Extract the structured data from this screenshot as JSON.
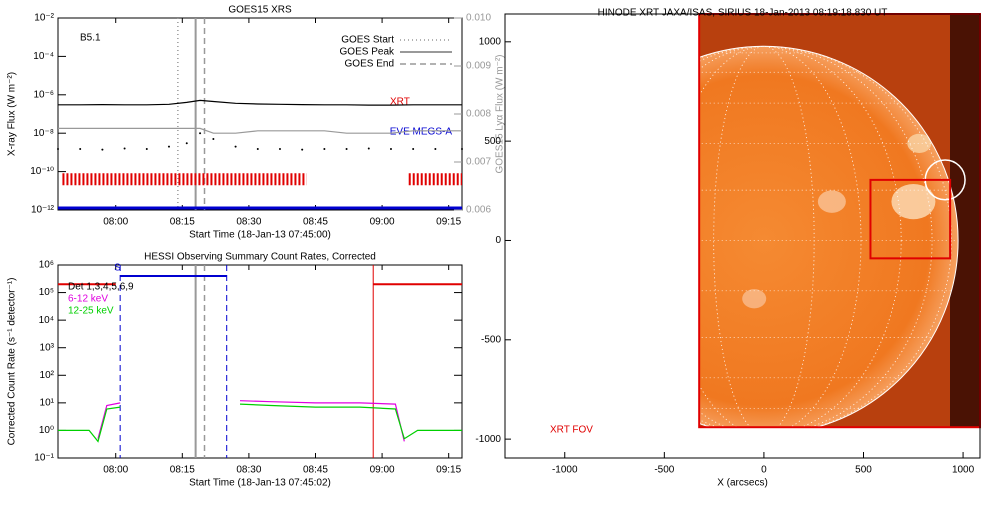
{
  "chart_data": [
    {
      "type": "line",
      "title": "GOES15 XRS",
      "xlabel": "Start Time (18-Jan-13 07:45:00)",
      "ylabel": "X-ray Flux (W m⁻²)",
      "y2label": "GOES15 Lyα Flux (W m⁻²)",
      "yscale": "log",
      "xlim": [
        "07:47",
        "09:18"
      ],
      "xticks": [
        "08:00",
        "08:15",
        "08:30",
        "08:45",
        "09:00",
        "09:15"
      ],
      "ylim": [
        1e-12,
        0.01
      ],
      "yticks": [
        {
          "value": 0.01,
          "label": "10⁻²"
        },
        {
          "value": 0.0001,
          "label": "10⁻⁴"
        },
        {
          "value": 1e-06,
          "label": "10⁻⁶"
        },
        {
          "value": 1e-08,
          "label": "10⁻⁸"
        },
        {
          "value": 1e-10,
          "label": "10⁻¹⁰"
        },
        {
          "value": 1e-12,
          "label": "10⁻¹²"
        }
      ],
      "y2lim": [
        0.006,
        0.01
      ],
      "y2ticks": [
        0.006,
        0.007,
        0.008,
        0.009,
        {
          "value": 0.01,
          "label": "0.010"
        }
      ],
      "annotation": "B5.1",
      "x": [
        "07:47",
        "07:52",
        "07:57",
        "08:02",
        "08:07",
        "08:12",
        "08:16",
        "08:19",
        "08:22",
        "08:27",
        "08:32",
        "08:37",
        "08:42",
        "08:47",
        "08:52",
        "08:57",
        "09:02",
        "09:07",
        "09:12",
        "09:18"
      ],
      "series": [
        {
          "color": "#000000",
          "values": [
            3e-07,
            3e-07,
            3.1e-07,
            3e-07,
            3e-07,
            3.2e-07,
            4e-07,
            5.1e-07,
            4.5e-07,
            3.6e-07,
            3.3e-07,
            3.2e-07,
            3.1e-07,
            3e-07,
            3e-07,
            2.9e-07,
            2.9e-07,
            3e-07,
            3e-07,
            3e-07
          ]
        },
        {
          "color": "#999999",
          "axis": "y2",
          "values": [
            0.0077,
            0.0077,
            0.0077,
            0.0077,
            0.0077,
            0.0077,
            0.0077,
            0.0077,
            0.0076,
            0.0076,
            0.00765,
            0.00765,
            0.00765,
            0.00765,
            0.0076,
            0.0076,
            0.0076,
            0.00765,
            0.00765,
            0.00765
          ]
        },
        {
          "color": "#000000",
          "style": "dots",
          "values": [
            1.5e-09,
            1.5e-09,
            1.4e-09,
            1.6e-09,
            1.5e-09,
            2e-09,
            3e-09,
            1e-08,
            5e-09,
            2e-09,
            1.5e-09,
            1.5e-09,
            1.4e-09,
            1.5e-09,
            1.5e-09,
            1.6e-09,
            1.5e-09,
            1.5e-09,
            1.5e-09,
            1.5e-09
          ]
        }
      ],
      "events": [
        {
          "name": "GOES Start",
          "x": "08:14",
          "style": "dotted"
        },
        {
          "name": "GOES Peak",
          "x": "08:18",
          "style": "solid"
        },
        {
          "name": "GOES End",
          "x": "08:20",
          "style": "dashed"
        }
      ],
      "coverage": [
        {
          "name": "XRT",
          "color": "#e00000",
          "level": 4e-11,
          "x": [
            [
              "07:48",
              "08:43"
            ],
            [
              "09:06",
              "09:18"
            ]
          ]
        },
        {
          "name": "EVE MEGS-A",
          "color": "#0000d0",
          "level": 1e-12,
          "x": [
            [
              "07:47",
              "09:18"
            ]
          ]
        }
      ]
    },
    {
      "type": "line",
      "title": "HESSI Observing Summary Count Rates, Corrected",
      "xlabel": "Start Time (18-Jan-13 07:45:02)",
      "ylabel": "Corrected Count Rate (s⁻¹ detector⁻¹)",
      "yscale": "log",
      "xlim": [
        "07:47",
        "09:18"
      ],
      "xticks": [
        "08:00",
        "08:15",
        "08:30",
        "08:45",
        "09:00",
        "09:15"
      ],
      "ylim": [
        0.1,
        1000000
      ],
      "yticks": [
        {
          "value": 0.1,
          "label": "10⁻¹"
        },
        {
          "value": 1,
          "label": "10⁰"
        },
        {
          "value": 10,
          "label": "10¹"
        },
        {
          "value": 100,
          "label": "10²"
        },
        {
          "value": 1000,
          "label": "10³"
        },
        {
          "value": 10000,
          "label": "10⁴"
        },
        {
          "value": 100000,
          "label": "10⁵"
        },
        {
          "value": 1000000,
          "label": "10⁶"
        }
      ],
      "legend_title": "Det 1,3,4,5,6,9",
      "x": [
        "07:47",
        "07:50",
        "07:54",
        "07:56",
        "07:58",
        "08:01",
        "08:14",
        "08:28",
        "08:35",
        "08:45",
        "08:55",
        "09:03",
        "09:05",
        "09:08",
        "09:12",
        "09:18"
      ],
      "series": [
        {
          "name": "6-12 keV",
          "color": "#e000e0",
          "values": [
            null,
            null,
            null,
            0.5,
            8,
            10,
            null,
            12,
            11,
            10,
            10,
            9,
            0.4,
            null,
            null,
            null
          ]
        },
        {
          "name": "12-25 keV",
          "color": "#00d000",
          "values": [
            1,
            1,
            1,
            0.4,
            6,
            7,
            null,
            9,
            8,
            7,
            7,
            6,
            0.5,
            1,
            1,
            1
          ]
        }
      ],
      "segments": [
        {
          "color": "#e00000",
          "level": 200000,
          "x": [
            "07:47",
            "08:00"
          ]
        },
        {
          "label": "S",
          "color": "#0000d0",
          "level": 400000,
          "x": [
            "08:01",
            "08:25"
          ]
        },
        {
          "color": "#e00000",
          "level": 200000,
          "x": [
            "08:58",
            "09:18"
          ]
        }
      ],
      "vlines": [
        {
          "x": "08:01",
          "color": "#0000d0",
          "style": "dashed"
        },
        {
          "x": "08:25",
          "color": "#0000d0",
          "style": "dashed"
        },
        {
          "x": "08:58",
          "color": "#e00000",
          "style": "solid"
        }
      ],
      "events": [
        {
          "x": "08:18",
          "style": "solid"
        },
        {
          "x": "08:20",
          "style": "dashed"
        }
      ]
    },
    {
      "type": "image",
      "title": "HINODE XRT JAXA/ISAS, SIRIUS 18-Jan-2013 08:19:18.830 UT",
      "xlabel": "X (arcsecs)",
      "xlim": [
        -1300,
        1085
      ],
      "xticks": [
        -1000,
        -500,
        0,
        500,
        1000
      ],
      "ylim": [
        -1095,
        1140
      ],
      "yticks": [
        -1000,
        -500,
        0,
        500,
        1000
      ],
      "annotation": "XRT FOV",
      "grid": "dotted",
      "limb_radius": 975,
      "fov": {
        "x": [
          -325,
          1085
        ],
        "y": [
          -940,
          1140
        ],
        "color": "#e00000"
      },
      "boxes": [
        {
          "x": [
            535,
            935
          ],
          "y": [
            -90,
            305
          ],
          "color": "#e00000"
        }
      ],
      "circles": [
        {
          "x": 910,
          "y": 305,
          "r": 100
        }
      ]
    }
  ]
}
